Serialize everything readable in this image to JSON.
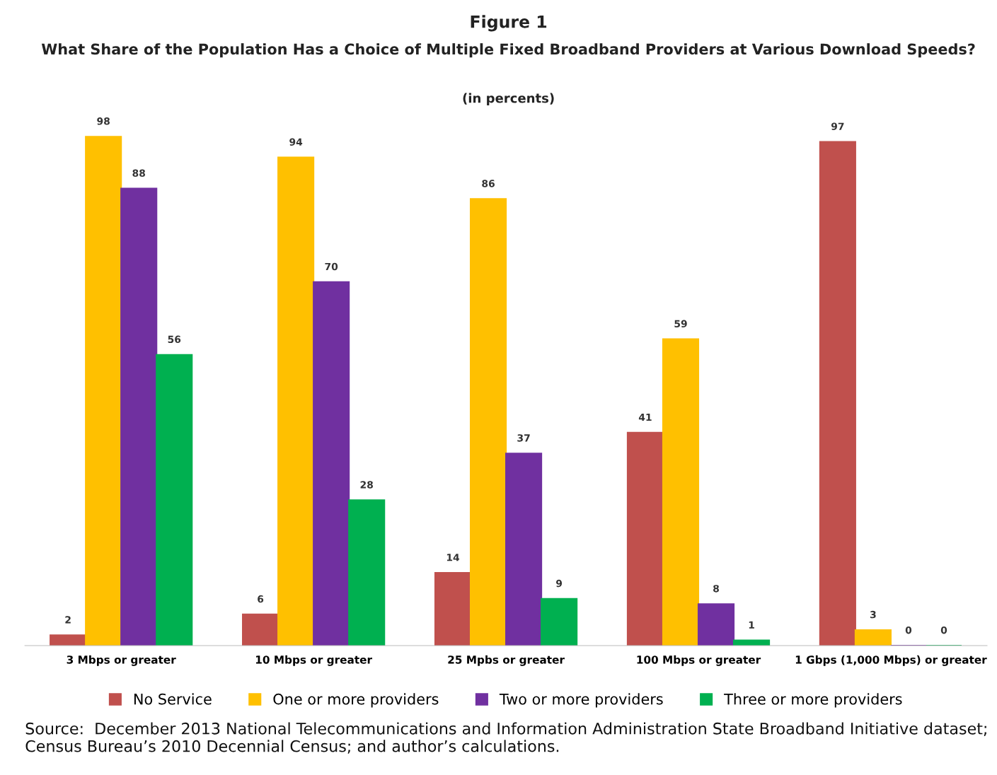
{
  "chart_data": {
    "type": "bar",
    "title": "Figure 1",
    "subtitle": "What Share of the Population Has a Choice of Multiple Fixed Broadband Providers at Various Download Speeds?",
    "annotations": [
      "(in percents)",
      "Source:  December 2013 National Telecommunications and Information Administration State Broadband Initiative dataset; Census Bureau’s 2010 Decennial Census; and author’s calculations."
    ],
    "categories": [
      "3 Mbps or greater",
      "10 Mbps or greater",
      "25 Mpbs or greater",
      "100 Mbps or greater",
      "1 Gbps (1,000 Mbps) or greater"
    ],
    "series": [
      {
        "name": "No Service",
        "color": "#c0504d",
        "values": [
          2,
          6,
          14,
          41,
          97
        ]
      },
      {
        "name": "One or more providers",
        "color": "#ffc000",
        "values": [
          98,
          94,
          86,
          59,
          3
        ]
      },
      {
        "name": "Two or more providers",
        "color": "#7030a0",
        "values": [
          88,
          70,
          37,
          8,
          0
        ]
      },
      {
        "name": "Three or more providers",
        "color": "#00b050",
        "values": [
          56,
          28,
          9,
          1,
          0
        ]
      }
    ],
    "data_labels": true,
    "grid": false,
    "legend": "bottom",
    "tick_labels": "x"
  }
}
